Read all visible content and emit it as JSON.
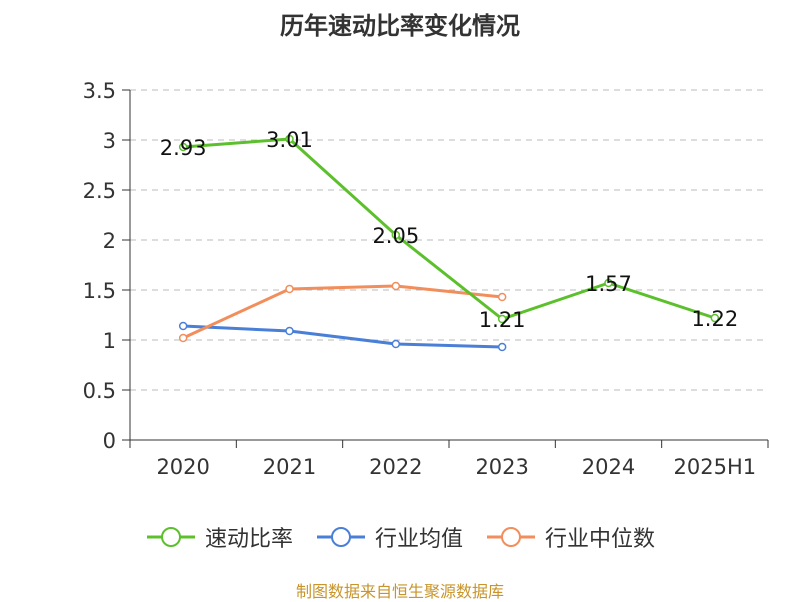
{
  "title": "历年速动比率变化情况",
  "source": "制图数据来自恒生聚源数据库",
  "colors": {
    "axis": "#333333",
    "grid": "#bbbbbb"
  },
  "chart_data": {
    "type": "line",
    "categories": [
      "2020",
      "2021",
      "2022",
      "2023",
      "2024",
      "2025H1"
    ],
    "ylim": [
      0,
      3.5
    ],
    "yticks": [
      "0",
      "0.5",
      "1",
      "1.5",
      "2",
      "2.5",
      "3",
      "3.5"
    ],
    "grid": true,
    "legend_position": "bottom",
    "series": [
      {
        "name": "速动比率",
        "color": "#5cc02c",
        "values": [
          2.93,
          3.01,
          2.05,
          1.21,
          1.57,
          1.22
        ],
        "labels": [
          "2.93",
          "3.01",
          "2.05",
          "1.21",
          "1.57",
          "1.22"
        ]
      },
      {
        "name": "行业均值",
        "color": "#4a7fd8",
        "values": [
          1.14,
          1.09,
          0.96,
          0.93,
          null,
          null
        ]
      },
      {
        "name": "行业中位数",
        "color": "#f28e5c",
        "values": [
          1.02,
          1.51,
          1.54,
          1.43,
          null,
          null
        ]
      }
    ]
  }
}
